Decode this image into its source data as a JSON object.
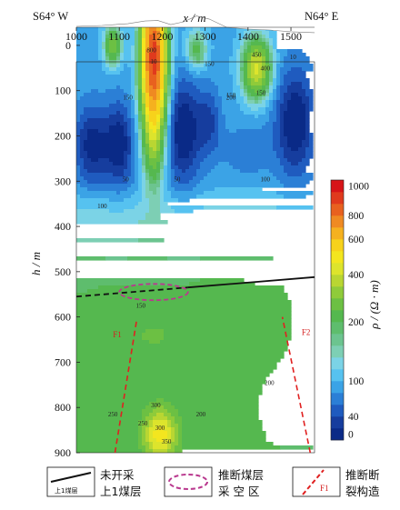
{
  "chart_data": {
    "type": "heatmap",
    "title": "",
    "corner_left": "S64° W",
    "corner_right": "N64° E",
    "xlabel": "x / m",
    "ylabel": "h / m",
    "x_ticks": [
      1000,
      1100,
      1200,
      1300,
      1400,
      1500
    ],
    "y_ticks": [
      0,
      100,
      200,
      300,
      400,
      500,
      600,
      700,
      800,
      900
    ],
    "xlim": [
      1000,
      1555
    ],
    "ylim": [
      -40,
      900
    ],
    "colorbar": {
      "label": "ρ / (Ω · m)",
      "ticks": [
        0,
        40,
        100,
        200,
        400,
        600,
        800,
        1000
      ],
      "levels": [
        0,
        20,
        40,
        60,
        80,
        100,
        120,
        140,
        160,
        180,
        200,
        250,
        300,
        350,
        400,
        450,
        500,
        600,
        700,
        800,
        900,
        1000
      ],
      "colors": [
        "#0a2a87",
        "#163d9e",
        "#1f5bbf",
        "#2b7fd6",
        "#3ba3e6",
        "#56c2f0",
        "#7bd3e6",
        "#7dcfb4",
        "#6cc48f",
        "#5ebd6d",
        "#55b84f",
        "#6cc043",
        "#8fcb3a",
        "#b9d632",
        "#dde42c",
        "#f3e61f",
        "#f7d21b",
        "#f5b11f",
        "#ef8a22",
        "#e8611f",
        "#e03a1d",
        "#d71418"
      ]
    },
    "contour_labels": [
      "10",
      "50",
      "50",
      "100",
      "100",
      "150",
      "150",
      "150",
      "150",
      "150",
      "200",
      "200",
      "200",
      "250",
      "250",
      "300",
      "300",
      "350",
      "450",
      "400",
      "800",
      "10"
    ],
    "seam_line": {
      "name": "上1煤层",
      "x": [
        1000,
        1555
      ],
      "h": [
        555,
        512
      ]
    },
    "goaf_ellipse": {
      "name": "推断煤层采空区",
      "x_center": 1180,
      "h_center": 545,
      "x_radius": 80,
      "h_radius": 18
    },
    "faults": [
      {
        "name": "F1",
        "x": [
          1090,
          1140
        ],
        "h": [
          900,
          610
        ]
      },
      {
        "name": "F2",
        "x": [
          1545,
          1480
        ],
        "h": [
          900,
          600
        ]
      }
    ]
  },
  "legend": {
    "seam_line_text_1": "未开采",
    "seam_line_text_2": "上1煤层",
    "seam_line_inner": "上1煤层",
    "goaf_text_1": "推断煤层",
    "goaf_text_2": "采 空 区",
    "fault_text_1": "推断断",
    "fault_text_2": "裂构造",
    "fault_inner": "F1"
  }
}
